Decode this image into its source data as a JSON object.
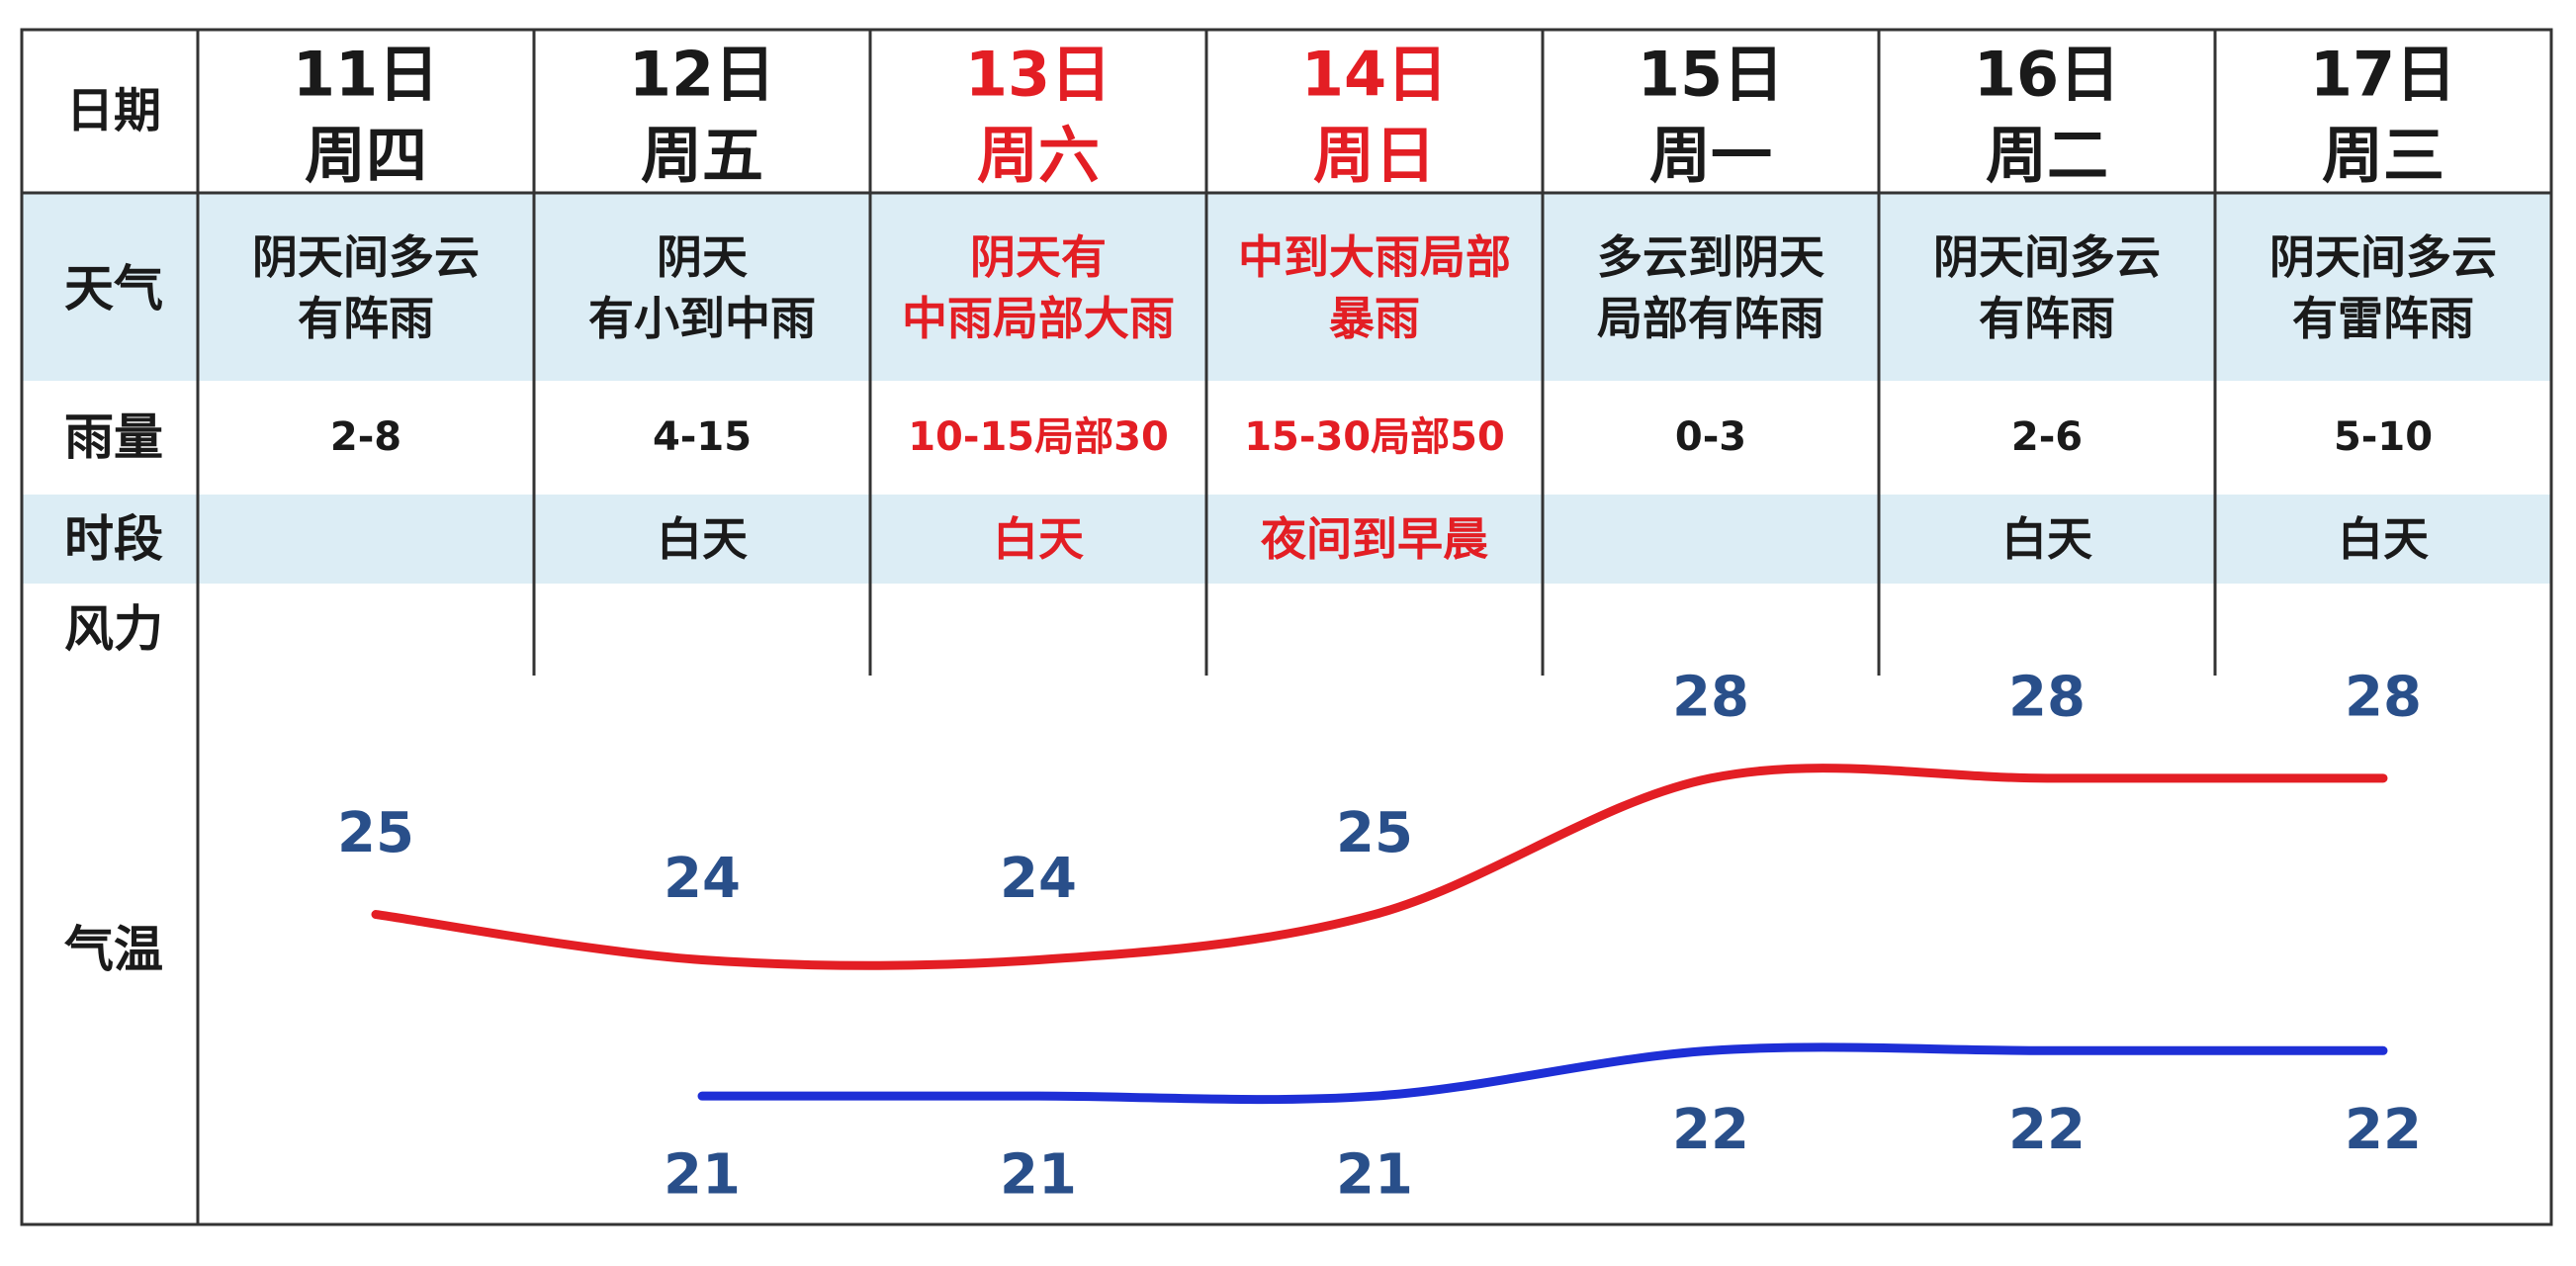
{
  "labels": {
    "date": "日期",
    "weather": "天气",
    "rain": "雨量",
    "period": "时段",
    "wind": "风力",
    "temp": "气温"
  },
  "colors": {
    "header_bg": "#ffffff",
    "band_bg": "#dcedf5",
    "grid_line": "#333333",
    "text_dark": "#1a1a1a",
    "text_red": "#e31e24",
    "temp_num": "#294f8a",
    "high_line": "#e31e24",
    "low_line": "#1e2fd6"
  },
  "days": [
    {
      "date": "11日",
      "weekday": "周四",
      "weather": [
        "阴天间多云",
        "有阵雨"
      ],
      "rain": "2-8",
      "period": "",
      "wind": "",
      "highlight": false
    },
    {
      "date": "12日",
      "weekday": "周五",
      "weather": [
        "阴天",
        "有小到中雨"
      ],
      "rain": "4-15",
      "period": "白天",
      "wind": "",
      "highlight": false
    },
    {
      "date": "13日",
      "weekday": "周六",
      "weather": [
        "阴天有",
        "中雨局部大雨"
      ],
      "rain": "10-15局部30",
      "period": "白天",
      "wind": "",
      "highlight": true
    },
    {
      "date": "14日",
      "weekday": "周日",
      "weather": [
        "中到大雨局部",
        "暴雨"
      ],
      "rain": "15-30局部50",
      "period": "夜间到早晨",
      "wind": "",
      "highlight": true
    },
    {
      "date": "15日",
      "weekday": "周一",
      "weather": [
        "多云到阴天",
        "局部有阵雨"
      ],
      "rain": "0-3",
      "period": "",
      "wind": "",
      "highlight": false
    },
    {
      "date": "16日",
      "weekday": "周二",
      "weather": [
        "阴天间多云",
        "有阵雨"
      ],
      "rain": "2-6",
      "period": "白天",
      "wind": "",
      "highlight": false
    },
    {
      "date": "17日",
      "weekday": "周三",
      "weather": [
        "阴天间多云",
        "有雷阵雨"
      ],
      "rain": "5-10",
      "period": "白天",
      "wind": "",
      "highlight": false
    }
  ],
  "chart_data": {
    "type": "line",
    "categories": [
      "11日",
      "12日",
      "13日",
      "14日",
      "15日",
      "16日",
      "17日"
    ],
    "series": [
      {
        "values": [
          25,
          24,
          24,
          25,
          28,
          28,
          28
        ]
      },
      {
        "values": [
          null,
          21,
          21,
          21,
          22,
          22,
          22
        ]
      }
    ],
    "ylim": [
      19,
      30
    ],
    "grid": false
  }
}
